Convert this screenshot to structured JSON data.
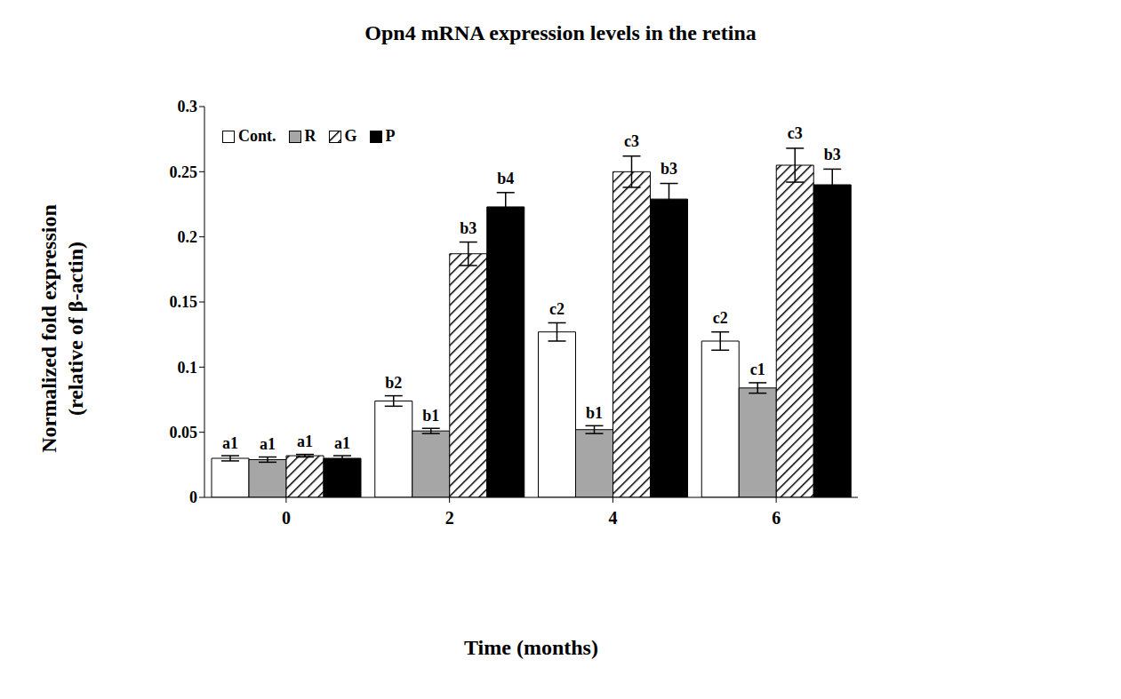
{
  "chart_data": {
    "type": "bar",
    "title": "Opn4 mRNA expression levels in the retina",
    "xlabel": "Time (months)",
    "ylabel": [
      "Normalized fold expression",
      "(relative of β-actin)"
    ],
    "categories": [
      "0",
      "2",
      "4",
      "6"
    ],
    "series": [
      {
        "name": "Cont.",
        "color": "#ffffff",
        "values": [
          0.03,
          0.074,
          0.127,
          0.12
        ],
        "errors": [
          0.002,
          0.004,
          0.007,
          0.007
        ],
        "letters": [
          "a1",
          "b2",
          "c2",
          "c2"
        ]
      },
      {
        "name": "R",
        "color": "#a6a6a6",
        "values": [
          0.029,
          0.051,
          0.052,
          0.084
        ],
        "errors": [
          0.002,
          0.002,
          0.003,
          0.004
        ],
        "letters": [
          "a1",
          "b1",
          "b1",
          "c1"
        ]
      },
      {
        "name": "G",
        "color": "#000000",
        "values": [
          0.032,
          0.187,
          0.25,
          0.255
        ],
        "errors": [
          0.001,
          0.009,
          0.012,
          0.013
        ],
        "letters": [
          "a1",
          "b3",
          "c3",
          "c3"
        ]
      },
      {
        "name": "P",
        "color": "#000000",
        "values": [
          0.03,
          0.223,
          0.229,
          0.24
        ],
        "errors": [
          0.002,
          0.011,
          0.012,
          0.012
        ],
        "letters": [
          "a1",
          "b4",
          "b3",
          "b3"
        ]
      }
    ],
    "ylim": [
      0,
      0.3
    ],
    "yticks": [
      0,
      0.05,
      0.1,
      0.15,
      0.2,
      0.25,
      0.3
    ],
    "grid": false,
    "legend": "upper left"
  }
}
